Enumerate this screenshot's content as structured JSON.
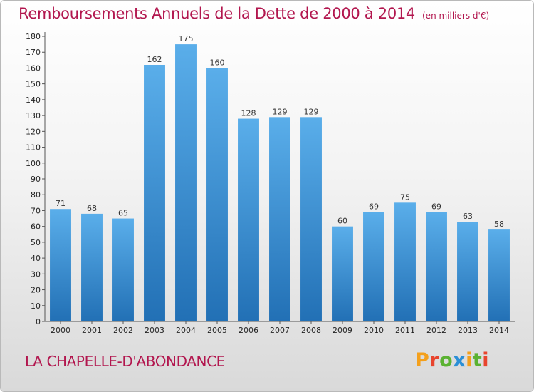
{
  "title": "Remboursements Annuels de la Dette de 2000 à 2014",
  "subtitle": "(en milliers d'€)",
  "place": "LA CHAPELLE-D'ABONDANCE",
  "logo": {
    "letters": [
      "P",
      "r",
      "o",
      "x",
      "i",
      "t",
      "i"
    ],
    "colors": [
      "#f4a01c",
      "#e8442d",
      "#5bb232",
      "#2b8fd6",
      "#f4a01c",
      "#5bb232",
      "#e8442d"
    ]
  },
  "colors": {
    "title": "#b2164e",
    "bar_top": "#5aaeea",
    "bar_bottom": "#2270b5"
  },
  "chart_data": {
    "type": "bar",
    "categories": [
      "2000",
      "2001",
      "2002",
      "2003",
      "2004",
      "2005",
      "2006",
      "2007",
      "2008",
      "2009",
      "2010",
      "2011",
      "2012",
      "2013",
      "2014"
    ],
    "values": [
      71,
      68,
      65,
      162,
      175,
      160,
      128,
      129,
      129,
      60,
      69,
      75,
      69,
      63,
      58
    ],
    "ylim": [
      0,
      180
    ],
    "yticks": [
      0,
      10,
      20,
      30,
      40,
      50,
      60,
      70,
      80,
      90,
      100,
      110,
      120,
      130,
      140,
      150,
      160,
      170,
      180
    ],
    "grid": false,
    "data_labels": true
  }
}
